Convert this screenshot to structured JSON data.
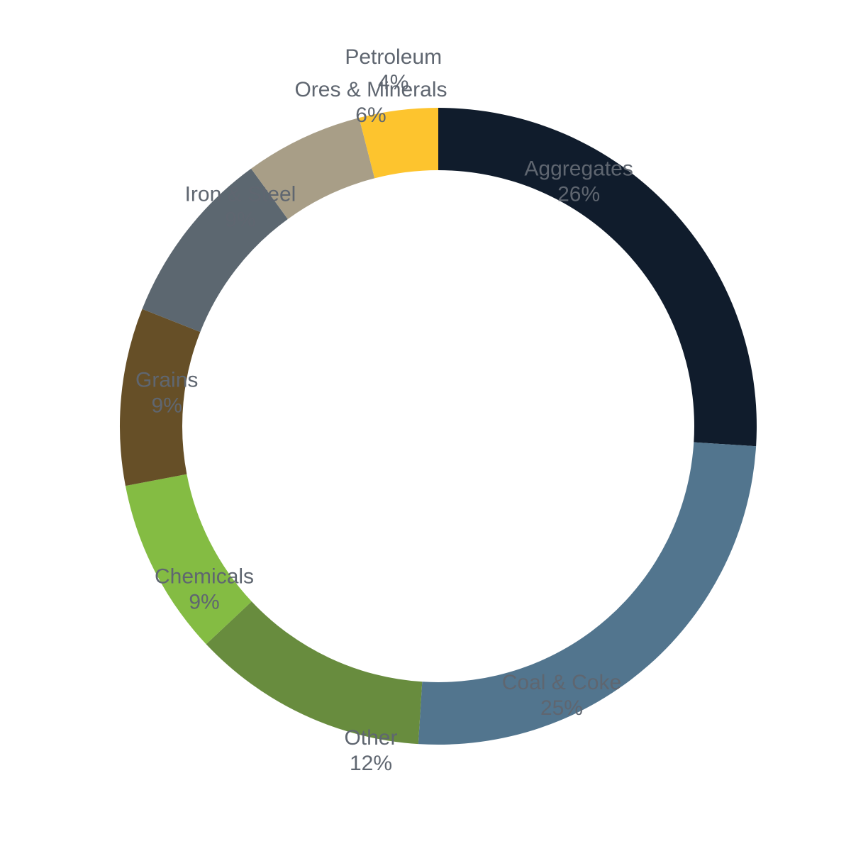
{
  "chart_data": {
    "type": "pie",
    "variant": "donut",
    "title": "",
    "legend": "none",
    "slices": [
      {
        "label": "Aggregates",
        "value_label": "26%",
        "value": 26,
        "color": "#101c2c"
      },
      {
        "label": "Coal & Coke",
        "value_label": "25%",
        "value": 25,
        "color": "#52758e"
      },
      {
        "label": "Other",
        "value_label": "12%",
        "value": 12,
        "color": "#688c3e"
      },
      {
        "label": "Chemicals",
        "value_label": "9%",
        "value": 9,
        "color": "#84bc43"
      },
      {
        "label": "Grains",
        "value_label": "9%",
        "value": 9,
        "color": "#664f27"
      },
      {
        "label": "Iron & Steel",
        "value_label": "9%",
        "value": 9,
        "color": "#5c6770"
      },
      {
        "label": "Ores & Minerals",
        "value_label": "6%",
        "value": 6,
        "color": "#a89e87"
      },
      {
        "label": "Petroleum",
        "value_label": "4%",
        "value": 4,
        "color": "#fdc42e"
      }
    ]
  }
}
